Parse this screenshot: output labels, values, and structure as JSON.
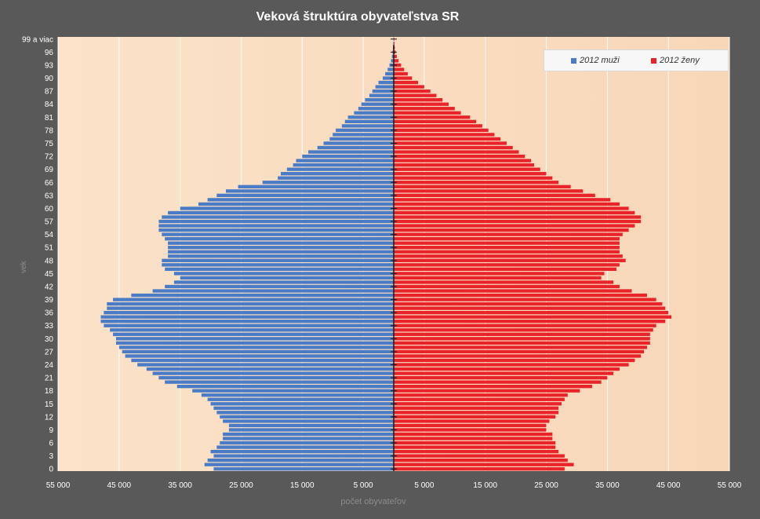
{
  "chart_data": {
    "type": "bar",
    "orientation": "horizontal-population-pyramid",
    "title": "Veková štruktúra obyvateľstva  SR",
    "xlabel": "počet obyvateľov",
    "ylabel": "vek",
    "xlim": [
      -55000,
      55000
    ],
    "x_ticks": [
      -55000,
      -45000,
      -35000,
      -25000,
      -15000,
      -5000,
      5000,
      15000,
      25000,
      35000,
      45000,
      55000
    ],
    "x_tick_labels": [
      "55 000",
      "45 000",
      "35 000",
      "25 000",
      "15 000",
      "5 000",
      "5 000",
      "15 000",
      "25 000",
      "35 000",
      "45 000",
      "55 000"
    ],
    "y_tick_labels": [
      "0",
      "3",
      "6",
      "9",
      "12",
      "15",
      "18",
      "21",
      "24",
      "27",
      "30",
      "33",
      "36",
      "39",
      "42",
      "45",
      "48",
      "51",
      "54",
      "57",
      "60",
      "63",
      "66",
      "69",
      "72",
      "75",
      "78",
      "81",
      "84",
      "87",
      "90",
      "93",
      "96",
      "99 a viac"
    ],
    "grid": true,
    "legend_position": "top-right",
    "categories": [
      "0",
      "1",
      "2",
      "3",
      "4",
      "5",
      "6",
      "7",
      "8",
      "9",
      "10",
      "11",
      "12",
      "13",
      "14",
      "15",
      "16",
      "17",
      "18",
      "19",
      "20",
      "21",
      "22",
      "23",
      "24",
      "25",
      "26",
      "27",
      "28",
      "29",
      "30",
      "31",
      "32",
      "33",
      "34",
      "35",
      "36",
      "37",
      "38",
      "39",
      "40",
      "41",
      "42",
      "43",
      "44",
      "45",
      "46",
      "47",
      "48",
      "49",
      "50",
      "51",
      "52",
      "53",
      "54",
      "55",
      "56",
      "57",
      "58",
      "59",
      "60",
      "61",
      "62",
      "63",
      "64",
      "65",
      "66",
      "67",
      "68",
      "69",
      "70",
      "71",
      "72",
      "73",
      "74",
      "75",
      "76",
      "77",
      "78",
      "79",
      "80",
      "81",
      "82",
      "83",
      "84",
      "85",
      "86",
      "87",
      "88",
      "89",
      "90",
      "91",
      "92",
      "93",
      "94",
      "95",
      "96",
      "97",
      "98",
      "99 a viac"
    ],
    "series": [
      {
        "name": "2012 muži",
        "color": "#4a7bc6",
        "values": [
          29500,
          31000,
          30500,
          29500,
          30000,
          29000,
          28500,
          28000,
          28000,
          27000,
          27000,
          28000,
          28500,
          29000,
          29500,
          30000,
          30500,
          31500,
          33000,
          35500,
          37500,
          38500,
          39500,
          40500,
          42000,
          43000,
          44000,
          44500,
          45000,
          45500,
          45500,
          46000,
          46500,
          47500,
          48000,
          48000,
          47500,
          47000,
          47000,
          46000,
          43000,
          39500,
          37500,
          36000,
          35000,
          36000,
          37500,
          38000,
          38000,
          37000,
          37000,
          37000,
          37000,
          37500,
          38000,
          38500,
          38500,
          38500,
          38000,
          37000,
          35000,
          32000,
          30500,
          29000,
          27500,
          25500,
          21500,
          19000,
          18500,
          17500,
          16500,
          16000,
          15000,
          14000,
          12500,
          11500,
          10500,
          10000,
          9500,
          8500,
          8000,
          7500,
          6500,
          5800,
          5300,
          4700,
          4000,
          3500,
          3000,
          2500,
          1800,
          1400,
          1000,
          700,
          450,
          300,
          200,
          130,
          80,
          60
        ]
      },
      {
        "name": "2012 ženy",
        "color": "#e8232a",
        "values": [
          28000,
          29500,
          28500,
          28000,
          27000,
          26500,
          26500,
          26000,
          26000,
          25000,
          25000,
          25500,
          26500,
          27000,
          27000,
          27500,
          28000,
          28500,
          30500,
          32500,
          34000,
          35000,
          36000,
          37000,
          38500,
          39500,
          40500,
          41000,
          41500,
          42000,
          42000,
          42000,
          42500,
          43000,
          44500,
          45500,
          45000,
          44500,
          44000,
          43000,
          41500,
          39000,
          37000,
          36000,
          34000,
          34500,
          36500,
          37000,
          38000,
          37500,
          37000,
          37000,
          37000,
          37000,
          37500,
          38500,
          39500,
          40500,
          40500,
          39500,
          38500,
          37000,
          35500,
          33000,
          31000,
          29000,
          27000,
          26000,
          25000,
          24000,
          23000,
          22500,
          21500,
          20500,
          19500,
          18500,
          17500,
          16500,
          15500,
          14500,
          13500,
          12500,
          11000,
          10000,
          9000,
          8000,
          7000,
          6000,
          5000,
          4000,
          3000,
          2300,
          1700,
          1200,
          800,
          500,
          300,
          180,
          120,
          80
        ]
      }
    ]
  }
}
